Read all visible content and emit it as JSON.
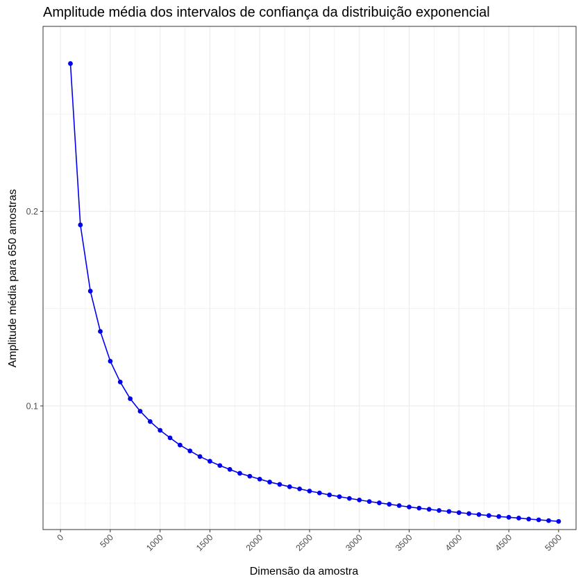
{
  "chart_data": {
    "type": "line",
    "title": "Amplitude média dos intervalos de confiança da distribuição exponencial",
    "xlabel": "Dimensão da amostra",
    "ylabel": "Amplitude média para 650 amostras",
    "x_ticks": [
      0,
      500,
      1000,
      1500,
      2000,
      2500,
      3000,
      3500,
      4000,
      4500,
      5000
    ],
    "y_ticks": [
      0.1,
      0.2
    ],
    "xlim": [
      -175,
      5175
    ],
    "ylim": [
      0.0365,
      0.295
    ],
    "grid": true,
    "legend": "none",
    "colors": {
      "series": "#0000ee",
      "grid": "#ebebeb",
      "panel_border": "#333333"
    },
    "series": [
      {
        "x": [
          100,
          200,
          300,
          400,
          500,
          600,
          700,
          800,
          900,
          1000,
          1100,
          1200,
          1300,
          1400,
          1500,
          1600,
          1700,
          1800,
          1900,
          2000,
          2100,
          2200,
          2300,
          2400,
          2500,
          2600,
          2700,
          2800,
          2900,
          3000,
          3100,
          3200,
          3300,
          3400,
          3500,
          3600,
          3700,
          3800,
          3900,
          4000,
          4100,
          4200,
          4300,
          4400,
          4500,
          4600,
          4700,
          4800,
          4900,
          5000
        ],
        "y": [
          0.2759,
          0.193,
          0.159,
          0.1383,
          0.123,
          0.1123,
          0.1037,
          0.0973,
          0.092,
          0.0875,
          0.0836,
          0.0799,
          0.0769,
          0.074,
          0.0716,
          0.0694,
          0.0674,
          0.0654,
          0.0639,
          0.0624,
          0.0609,
          0.0597,
          0.0585,
          0.0574,
          0.0563,
          0.0553,
          0.0543,
          0.0534,
          0.0525,
          0.0517,
          0.0509,
          0.0502,
          0.0495,
          0.0488,
          0.0481,
          0.0475,
          0.0469,
          0.0463,
          0.0458,
          0.0452,
          0.0447,
          0.0442,
          0.0437,
          0.0432,
          0.0428,
          0.0424,
          0.0419,
          0.0415,
          0.0411,
          0.0407
        ]
      }
    ]
  }
}
